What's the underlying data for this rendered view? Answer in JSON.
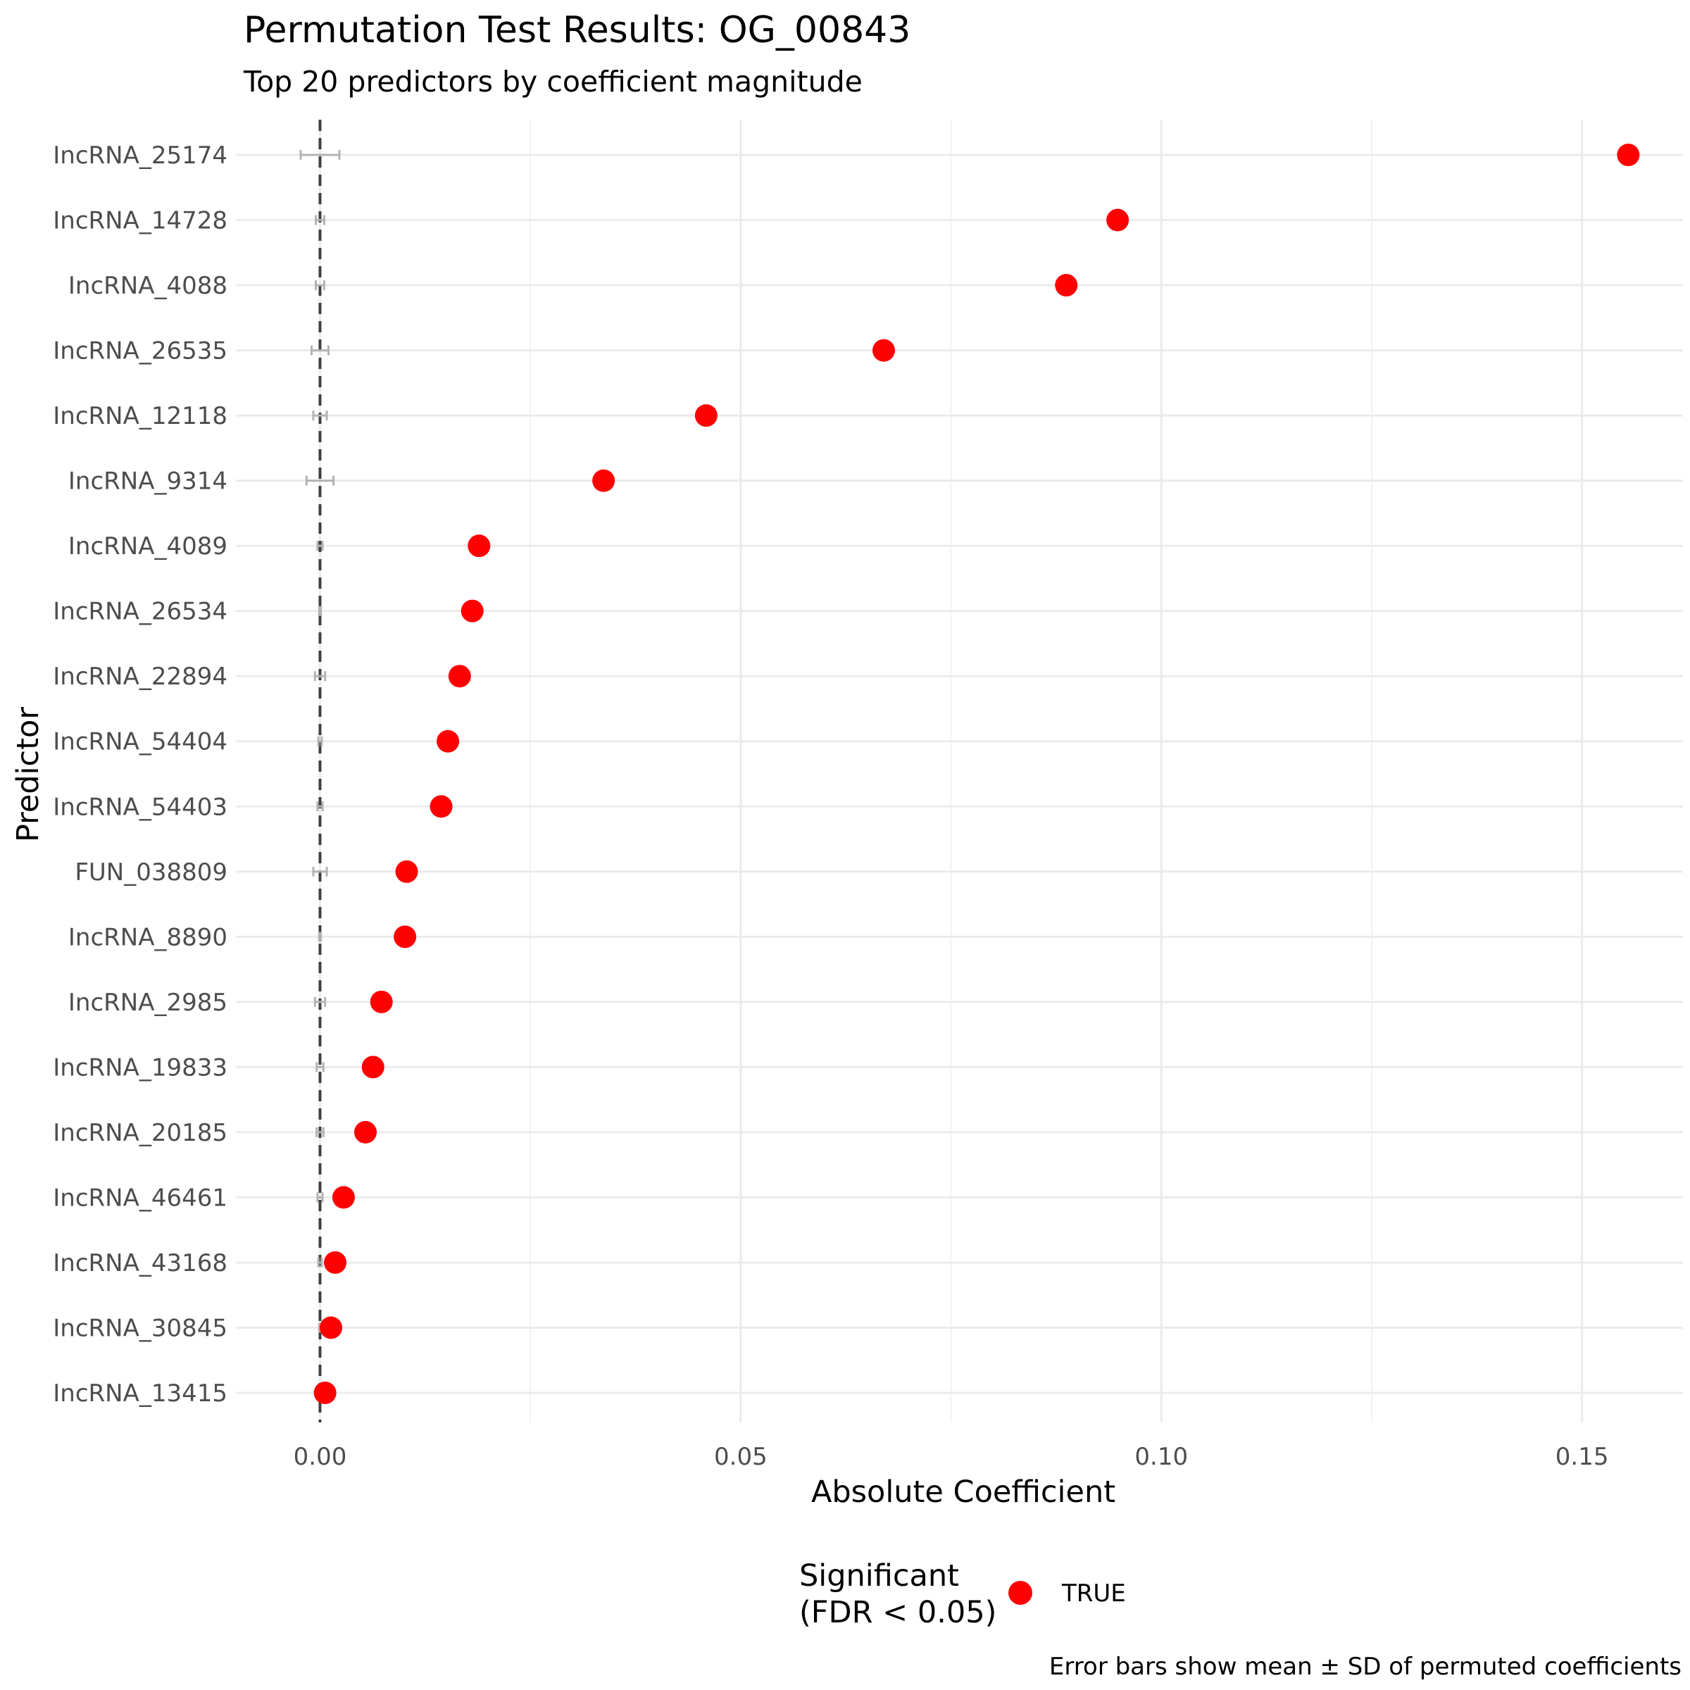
{
  "chart_data": {
    "type": "scatter",
    "title": "Permutation Test Results: OG_00843",
    "subtitle": "Top 20 predictors by coefficient magnitude",
    "xlabel": "Absolute Coefficient",
    "ylabel": "Predictor",
    "xlim": [
      -0.01,
      0.162
    ],
    "x_ticks": [
      0.0,
      0.05,
      0.1,
      0.15
    ],
    "x_tick_labels": [
      "0.00",
      "0.05",
      "0.10",
      "0.15"
    ],
    "grid": true,
    "reference_line": {
      "x": 0,
      "style": "dashed",
      "color": "#404040"
    },
    "categories": [
      "lncRNA_25174",
      "lncRNA_14728",
      "lncRNA_4088",
      "lncRNA_26535",
      "lncRNA_12118",
      "lncRNA_9314",
      "lncRNA_4089",
      "lncRNA_26534",
      "lncRNA_22894",
      "lncRNA_54404",
      "lncRNA_54403",
      "FUN_038809",
      "lncRNA_8890",
      "lncRNA_2985",
      "lncRNA_19833",
      "lncRNA_20185",
      "lncRNA_46461",
      "lncRNA_43168",
      "lncRNA_30845",
      "lncRNA_13415"
    ],
    "category_labels": [
      "IncRNA_25174",
      "IncRNA_14728",
      "IncRNA_4088",
      "IncRNA_26535",
      "IncRNA_12118",
      "IncRNA_9314",
      "IncRNA_4089",
      "IncRNA_26534",
      "IncRNA_22894",
      "IncRNA_54404",
      "IncRNA_54403",
      "FUN_038809",
      "IncRNA_8890",
      "IncRNA_2985",
      "IncRNA_19833",
      "IncRNA_20185",
      "IncRNA_46461",
      "IncRNA_43168",
      "IncRNA_30845",
      "IncRNA_13415"
    ],
    "series": [
      {
        "values": [
          0.1555,
          0.0948,
          0.0887,
          0.067,
          0.0459,
          0.0337,
          0.0189,
          0.0181,
          0.0166,
          0.0152,
          0.0144,
          0.0103,
          0.0101,
          0.0073,
          0.0063,
          0.0054,
          0.0028,
          0.0018,
          0.0013,
          0.0006
        ],
        "significant": [
          true,
          true,
          true,
          true,
          true,
          true,
          true,
          true,
          true,
          true,
          true,
          true,
          true,
          true,
          true,
          true,
          true,
          true,
          true,
          true
        ],
        "color": "#ff0000"
      }
    ],
    "error_bars": {
      "mean": [
        0.0,
        0.0,
        0.0,
        0.0,
        0.0,
        0.0,
        0.0,
        0.0,
        0.0,
        0.0,
        0.0,
        0.0,
        0.0,
        0.0,
        0.0,
        0.0,
        0.0,
        0.0,
        0.0,
        0.0
      ],
      "sd": [
        0.0023,
        0.0005,
        0.0005,
        0.001,
        0.0008,
        0.0016,
        0.0003,
        0.0001,
        0.0006,
        0.0002,
        0.0003,
        0.0008,
        0.0001,
        0.0006,
        0.0004,
        0.0004,
        0.0003,
        0.0002,
        0.0001,
        0.0001
      ],
      "color": "#b3b3b3"
    },
    "legend": {
      "position": "bottom",
      "title": "Significant\n(FDR < 0.05)",
      "title_lines": [
        "Significant",
        "(FDR < 0.05)"
      ],
      "entries": [
        {
          "label": "TRUE",
          "color": "#ff0000"
        }
      ]
    },
    "caption": "Error bars show mean ± SD of permuted coefficients"
  }
}
